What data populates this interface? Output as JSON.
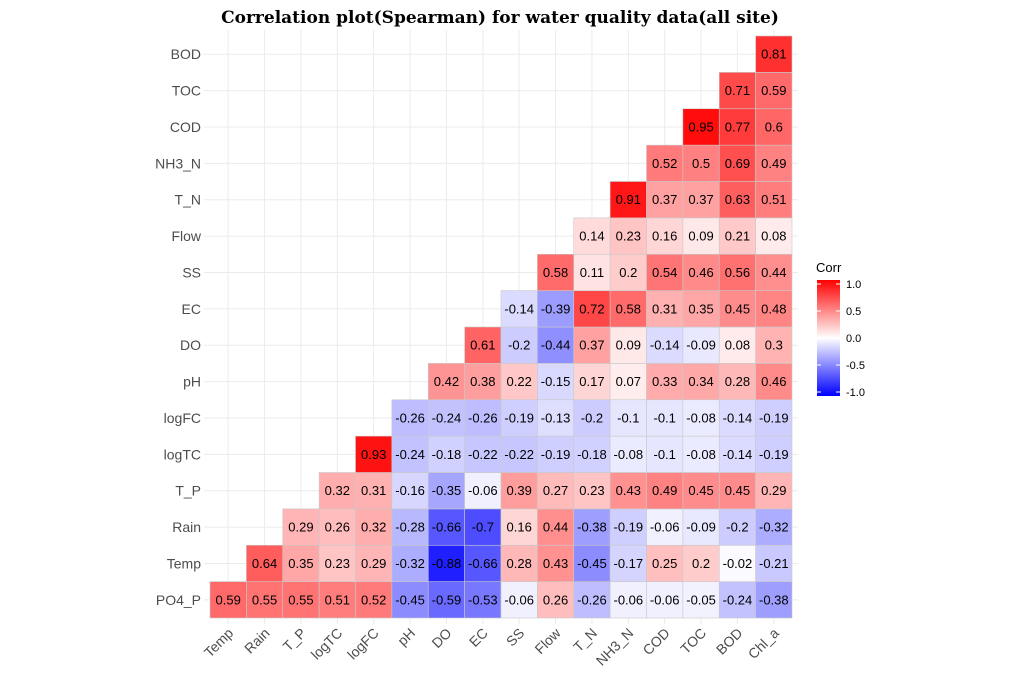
{
  "chart_data": {
    "type": "heatmap",
    "title": "Correlation plot(Spearman) for water quality data(all site)",
    "x_categories": [
      "Temp",
      "Rain",
      "T_P",
      "logTC",
      "logFC",
      "pH",
      "DO",
      "EC",
      "SS",
      "Flow",
      "T_N",
      "NH3_N",
      "COD",
      "TOC",
      "BOD",
      "Chl_a"
    ],
    "y_categories": [
      "PO4_P",
      "Temp",
      "Rain",
      "T_P",
      "logTC",
      "logFC",
      "pH",
      "DO",
      "EC",
      "SS",
      "Flow",
      "T_N",
      "NH3_N",
      "COD",
      "TOC",
      "BOD"
    ],
    "values": [
      [
        0.59,
        0.55,
        0.55,
        0.51,
        0.52,
        -0.45,
        -0.59,
        -0.53,
        -0.06,
        0.26,
        -0.26,
        -0.06,
        -0.06,
        -0.05,
        -0.24,
        -0.38
      ],
      [
        null,
        0.64,
        0.35,
        0.23,
        0.29,
        -0.32,
        -0.88,
        -0.66,
        0.28,
        0.43,
        -0.45,
        -0.17,
        0.25,
        0.2,
        -0.02,
        -0.21
      ],
      [
        null,
        null,
        0.29,
        0.26,
        0.32,
        -0.28,
        -0.66,
        -0.7,
        0.16,
        0.44,
        -0.38,
        -0.19,
        -0.06,
        -0.09,
        -0.2,
        -0.32
      ],
      [
        null,
        null,
        null,
        0.32,
        0.31,
        -0.16,
        -0.35,
        -0.06,
        0.39,
        0.27,
        0.23,
        0.43,
        0.49,
        0.45,
        0.45,
        0.29
      ],
      [
        null,
        null,
        null,
        null,
        0.93,
        -0.24,
        -0.18,
        -0.22,
        -0.22,
        -0.19,
        -0.18,
        -0.08,
        -0.1,
        -0.08,
        -0.14,
        -0.19
      ],
      [
        null,
        null,
        null,
        null,
        null,
        -0.26,
        -0.24,
        -0.26,
        -0.19,
        -0.13,
        -0.2,
        -0.1,
        -0.1,
        -0.08,
        -0.14,
        -0.19
      ],
      [
        null,
        null,
        null,
        null,
        null,
        null,
        0.42,
        0.38,
        0.22,
        -0.15,
        0.17,
        0.07,
        0.33,
        0.34,
        0.28,
        0.46
      ],
      [
        null,
        null,
        null,
        null,
        null,
        null,
        null,
        0.61,
        -0.2,
        -0.44,
        0.37,
        0.09,
        -0.14,
        -0.09,
        0.08,
        0.3
      ],
      [
        null,
        null,
        null,
        null,
        null,
        null,
        null,
        null,
        -0.14,
        -0.39,
        0.72,
        0.58,
        0.31,
        0.35,
        0.45,
        0.48
      ],
      [
        null,
        null,
        null,
        null,
        null,
        null,
        null,
        null,
        null,
        0.58,
        0.11,
        0.2,
        0.54,
        0.46,
        0.56,
        0.44
      ],
      [
        null,
        null,
        null,
        null,
        null,
        null,
        null,
        null,
        null,
        null,
        0.14,
        0.23,
        0.16,
        0.09,
        0.21,
        0.08
      ],
      [
        null,
        null,
        null,
        null,
        null,
        null,
        null,
        null,
        null,
        null,
        null,
        0.91,
        0.37,
        0.37,
        0.63,
        0.51
      ],
      [
        null,
        null,
        null,
        null,
        null,
        null,
        null,
        null,
        null,
        null,
        null,
        null,
        0.52,
        0.5,
        0.69,
        0.49
      ],
      [
        null,
        null,
        null,
        null,
        null,
        null,
        null,
        null,
        null,
        null,
        null,
        null,
        null,
        0.95,
        0.77,
        0.6
      ],
      [
        null,
        null,
        null,
        null,
        null,
        null,
        null,
        null,
        null,
        null,
        null,
        null,
        null,
        null,
        0.71,
        0.59
      ],
      [
        null,
        null,
        null,
        null,
        null,
        null,
        null,
        null,
        null,
        null,
        null,
        null,
        null,
        null,
        null,
        0.81
      ]
    ],
    "legend": {
      "title": "Corr",
      "ticks": [
        "1.0",
        "0.5",
        "0.0",
        "-0.5",
        "-1.0"
      ],
      "tick_values": [
        1.0,
        0.5,
        0.0,
        -0.5,
        -1.0
      ],
      "range": [
        -1,
        1
      ],
      "placement": "right"
    },
    "colors": {
      "low": "#0000ff",
      "mid": "#ffffff",
      "high": "#ff0000"
    },
    "grid": true
  }
}
